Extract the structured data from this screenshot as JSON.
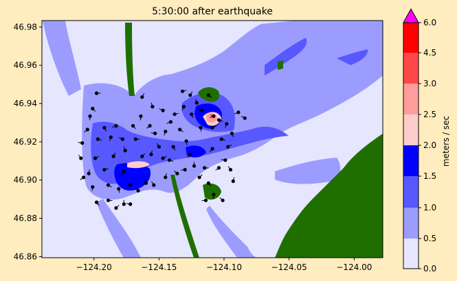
{
  "chart_data": {
    "type": "heatmap",
    "title": "5:30:00 after earthquake",
    "xlabel": "",
    "ylabel": "",
    "xlim": [
      -124.24,
      -123.978
    ],
    "ylim": [
      46.859,
      46.983
    ],
    "x_ticks": [
      {
        "value": -124.2,
        "label": "−124.20"
      },
      {
        "value": -124.15,
        "label": "−124.15"
      },
      {
        "value": -124.1,
        "label": "−124.10"
      },
      {
        "value": -124.05,
        "label": "−124.05"
      },
      {
        "value": -124.0,
        "label": "−124.00"
      }
    ],
    "y_ticks": [
      {
        "value": 46.86,
        "label": "46.86"
      },
      {
        "value": 46.88,
        "label": "46.88"
      },
      {
        "value": 46.9,
        "label": "46.90"
      },
      {
        "value": 46.92,
        "label": "46.92"
      },
      {
        "value": 46.94,
        "label": "46.94"
      },
      {
        "value": 46.96,
        "label": "46.96"
      },
      {
        "value": 46.98,
        "label": "46.98"
      }
    ],
    "colorbar": {
      "label": "meters / sec",
      "extend": "max",
      "max_arrow_color": "#ff00ff",
      "levels": [
        {
          "from": 0.0,
          "to": 0.5,
          "color": "#e6e6ff"
        },
        {
          "from": 0.5,
          "to": 1.0,
          "color": "#9c9cff"
        },
        {
          "from": 1.0,
          "to": 1.5,
          "color": "#5858ff"
        },
        {
          "from": 1.5,
          "to": 2.0,
          "color": "#0000ff"
        },
        {
          "from": 2.0,
          "to": 2.5,
          "color": "#ffcccc"
        },
        {
          "from": 2.5,
          "to": 3.0,
          "color": "#ff9c9c"
        },
        {
          "from": 3.0,
          "to": 4.5,
          "color": "#ff4848"
        },
        {
          "from": 4.5,
          "to": 6.0,
          "color": "#ff0000"
        }
      ],
      "ticks": [
        {
          "value": 0.0,
          "label": "0.0"
        },
        {
          "value": 0.5,
          "label": "0.5"
        },
        {
          "value": 1.0,
          "label": "1.0"
        },
        {
          "value": 1.5,
          "label": "1.5"
        },
        {
          "value": 2.0,
          "label": "2.0"
        },
        {
          "value": 2.5,
          "label": "2.5"
        },
        {
          "value": 3.0,
          "label": "3.0"
        },
        {
          "value": 4.5,
          "label": "4.5"
        },
        {
          "value": 6.0,
          "label": "6.0"
        }
      ]
    },
    "land_color": "#1f6f00",
    "marker_color": "#000000",
    "markers": [
      [
        -124.198,
        46.945
      ],
      [
        -124.201,
        46.937
      ],
      [
        -124.203,
        46.933
      ],
      [
        -124.205,
        46.926
      ],
      [
        -124.209,
        46.919
      ],
      [
        -124.21,
        46.911
      ],
      [
        -124.204,
        46.903
      ],
      [
        -124.199,
        46.911
      ],
      [
        -124.197,
        46.921
      ],
      [
        -124.192,
        46.927
      ],
      [
        -124.187,
        46.922
      ],
      [
        -124.183,
        46.928
      ],
      [
        -124.178,
        46.921
      ],
      [
        -124.176,
        46.915
      ],
      [
        -124.185,
        46.912
      ],
      [
        -124.192,
        46.905
      ],
      [
        -124.189,
        46.897
      ],
      [
        -124.181,
        46.895
      ],
      [
        -124.177,
        46.904
      ],
      [
        -124.172,
        46.897
      ],
      [
        -124.166,
        46.894
      ],
      [
        -124.16,
        46.898
      ],
      [
        -124.163,
        46.912
      ],
      [
        -124.168,
        46.921
      ],
      [
        -124.17,
        46.928
      ],
      [
        -124.164,
        46.933
      ],
      [
        -124.157,
        46.928
      ],
      [
        -124.153,
        46.924
      ],
      [
        -124.15,
        46.917
      ],
      [
        -124.156,
        46.913
      ],
      [
        -124.147,
        46.911
      ],
      [
        -124.142,
        46.91
      ],
      [
        -124.139,
        46.917
      ],
      [
        -124.145,
        46.925
      ],
      [
        -124.141,
        46.93
      ],
      [
        -124.147,
        46.936
      ],
      [
        -124.155,
        46.938
      ],
      [
        -124.163,
        46.943
      ],
      [
        -124.138,
        46.934
      ],
      [
        -124.134,
        46.926
      ],
      [
        -124.129,
        46.92
      ],
      [
        -124.126,
        46.913
      ],
      [
        -124.13,
        46.905
      ],
      [
        -124.136,
        46.903
      ],
      [
        -124.123,
        46.907
      ],
      [
        -124.119,
        46.901
      ],
      [
        -124.115,
        46.906
      ],
      [
        -124.112,
        46.898
      ],
      [
        -124.108,
        46.892
      ],
      [
        -124.104,
        46.906
      ],
      [
        -124.099,
        46.91
      ],
      [
        -124.095,
        46.905
      ],
      [
        -124.093,
        46.899
      ],
      [
        -124.097,
        46.917
      ],
      [
        -124.102,
        46.921
      ],
      [
        -124.094,
        46.924
      ],
      [
        -124.098,
        46.929
      ],
      [
        -124.108,
        46.933
      ],
      [
        -124.117,
        46.936
      ],
      [
        -124.121,
        46.94
      ],
      [
        -124.126,
        46.944
      ],
      [
        -124.132,
        46.946
      ],
      [
        -124.112,
        46.944
      ],
      [
        -124.118,
        46.927
      ],
      [
        -124.109,
        46.916
      ],
      [
        -124.114,
        46.889
      ],
      [
        -124.101,
        46.889
      ],
      [
        -124.177,
        46.887
      ],
      [
        -124.183,
        46.885
      ],
      [
        -124.189,
        46.889
      ],
      [
        -124.198,
        46.888
      ],
      [
        -124.201,
        46.896
      ],
      [
        -124.208,
        46.901
      ],
      [
        -124.172,
        46.887
      ],
      [
        -124.154,
        46.897
      ],
      [
        -124.145,
        46.901
      ],
      [
        -124.109,
        46.927
      ],
      [
        -124.104,
        46.931
      ],
      [
        -124.125,
        46.934
      ],
      [
        -124.131,
        46.938
      ],
      [
        -124.089,
        46.935
      ],
      [
        -124.084,
        46.932
      ]
    ]
  }
}
